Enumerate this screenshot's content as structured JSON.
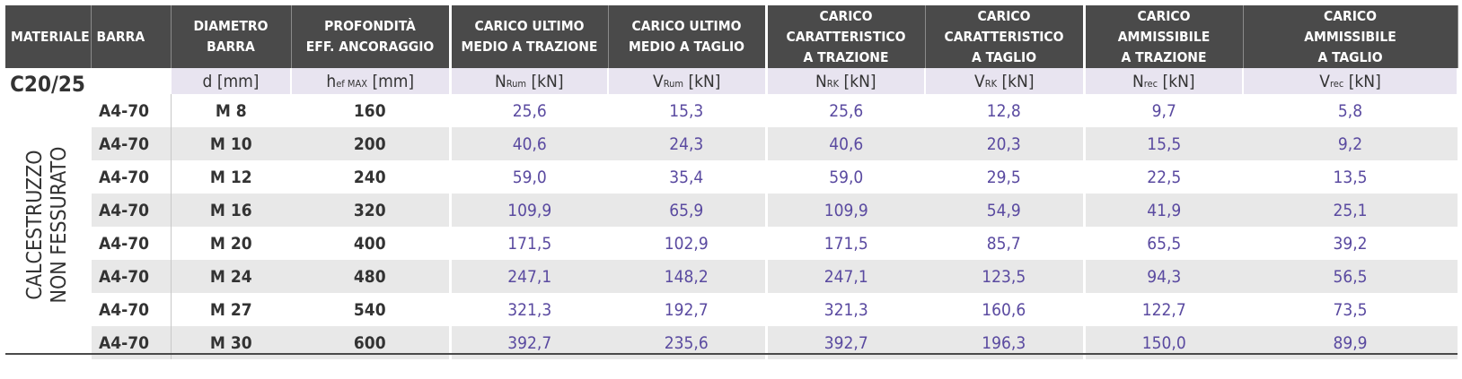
{
  "headers": [
    {
      "line1": "MATERIALE",
      "line2": "",
      "line3": ""
    },
    {
      "line1": "BARRA",
      "line2": "",
      "line3": ""
    },
    {
      "line1": "DIAMETRO",
      "line2": "BARRA",
      "line3": ""
    },
    {
      "line1": "PROFONDITÀ",
      "line2": "EFF. ANCORAGGIO",
      "line3": ""
    },
    {
      "line1": "CARICO ULTIMO",
      "line2": "MEDIO A TRAZIONE",
      "line3": ""
    },
    {
      "line1": "CARICO ULTIMO",
      "line2": "MEDIO A TAGLIO",
      "line3": ""
    },
    {
      "line1": "CARICO",
      "line2": "CARATTERISTICO",
      "line3": "A TRAZIONE"
    },
    {
      "line1": "CARICO",
      "line2": "CARATTERISTICO",
      "line3": "A TAGLIO"
    },
    {
      "line1": "CARICO",
      "line2": "AMMISSIBILE",
      "line3": "A TRAZIONE"
    },
    {
      "line1": "CARICO",
      "line2": "AMMISSIBILE",
      "line3": "A TAGLIO"
    }
  ],
  "units": [
    {
      "sym": "d",
      "sub": "",
      "unit": " [mm]"
    },
    {
      "sym": "h",
      "sub": "ef MAX",
      "unit": " [mm]"
    },
    {
      "sym": "N",
      "sub": "Rum",
      "unit": " [kN]"
    },
    {
      "sym": "V",
      "sub": "Rum",
      "unit": " [kN]"
    },
    {
      "sym": "N",
      "sub": "RK",
      "unit": " [kN]"
    },
    {
      "sym": "V",
      "sub": "RK",
      "unit": " [kN]"
    },
    {
      "sym": "N",
      "sub": "rec",
      "unit": " [kN]"
    },
    {
      "sym": "V",
      "sub": "rec",
      "unit": " [kN]"
    }
  ],
  "material": {
    "grade": "C20/25",
    "line1": "CALCESTRUZZO",
    "line2": "NON FESSURATO"
  },
  "rows": [
    {
      "barra": "A4-70",
      "diametro": "M 8",
      "profondita": "160",
      "v": [
        "25,6",
        "15,3",
        "25,6",
        "12,8",
        "9,7",
        "5,8"
      ]
    },
    {
      "barra": "A4-70",
      "diametro": "M 10",
      "profondita": "200",
      "v": [
        "40,6",
        "24,3",
        "40,6",
        "20,3",
        "15,5",
        "9,2"
      ]
    },
    {
      "barra": "A4-70",
      "diametro": "M 12",
      "profondita": "240",
      "v": [
        "59,0",
        "35,4",
        "59,0",
        "29,5",
        "22,5",
        "13,5"
      ]
    },
    {
      "barra": "A4-70",
      "diametro": "M 16",
      "profondita": "320",
      "v": [
        "109,9",
        "65,9",
        "109,9",
        "54,9",
        "41,9",
        "25,1"
      ]
    },
    {
      "barra": "A4-70",
      "diametro": "M 20",
      "profondita": "400",
      "v": [
        "171,5",
        "102,9",
        "171,5",
        "85,7",
        "65,5",
        "39,2"
      ]
    },
    {
      "barra": "A4-70",
      "diametro": "M 24",
      "profondita": "480",
      "v": [
        "247,1",
        "148,2",
        "247,1",
        "123,5",
        "94,3",
        "56,5"
      ]
    },
    {
      "barra": "A4-70",
      "diametro": "M 27",
      "profondita": "540",
      "v": [
        "321,3",
        "192,7",
        "321,3",
        "160,6",
        "122,7",
        "73,5"
      ]
    },
    {
      "barra": "A4-70",
      "diametro": "M 30",
      "profondita": "600",
      "v": [
        "392,7",
        "235,6",
        "392,7",
        "196,3",
        "150,0",
        "89,9"
      ]
    }
  ]
}
